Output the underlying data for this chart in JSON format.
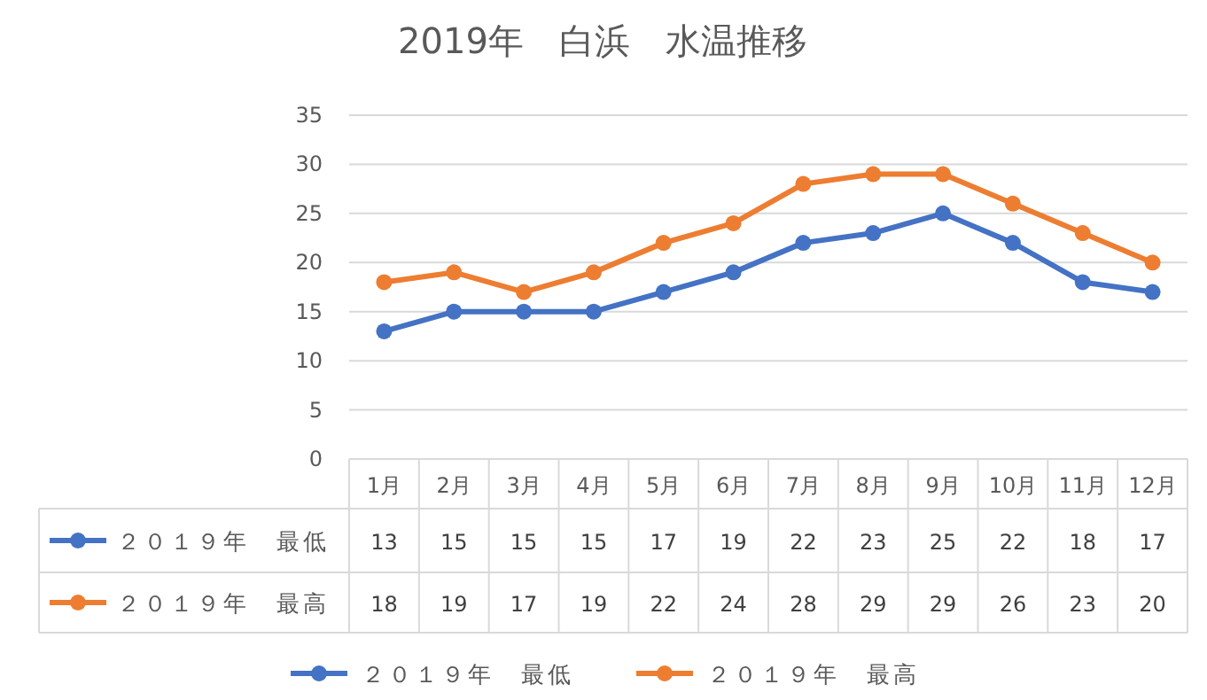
{
  "chart_data": {
    "type": "line",
    "title": "2019年　白浜　水温推移",
    "categories": [
      "1月",
      "2月",
      "3月",
      "4月",
      "5月",
      "6月",
      "7月",
      "8月",
      "9月",
      "10月",
      "11月",
      "12月"
    ],
    "series": [
      {
        "name": "２０１９年　最低",
        "color": "#4472c4",
        "values": [
          13,
          15,
          15,
          15,
          17,
          19,
          22,
          23,
          25,
          22,
          18,
          17
        ]
      },
      {
        "name": "２０１９年　最高",
        "color": "#ed7d31",
        "values": [
          18,
          19,
          17,
          19,
          22,
          24,
          28,
          29,
          29,
          26,
          23,
          20
        ]
      }
    ],
    "ylim": [
      0,
      35
    ],
    "yticks": [
      0,
      5,
      10,
      15,
      20,
      25,
      30,
      35
    ],
    "grid": "y",
    "legend": "bottom",
    "marker": "circle",
    "line_style": "solid",
    "data_labels": true
  }
}
